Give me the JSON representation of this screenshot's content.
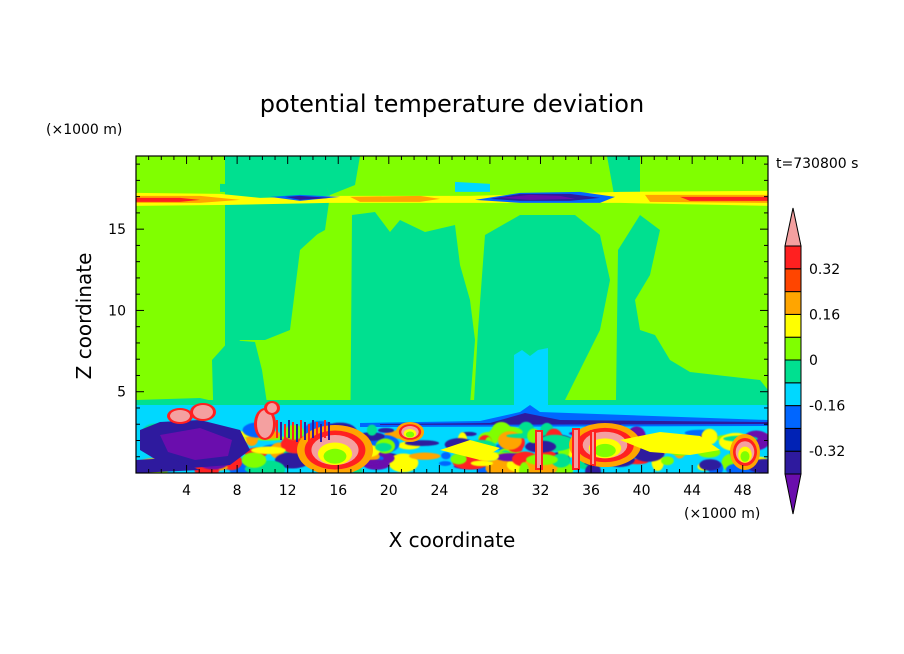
{
  "chart_data": {
    "type": "heatmap",
    "title": "potential temperature deviation",
    "xlabel": "X coordinate",
    "ylabel": "Z coordinate",
    "x_unit": "(×1000 m)",
    "y_unit": "(×1000 m)",
    "time_label": "t=730800 s",
    "xlim": [
      0,
      50
    ],
    "ylim": [
      0,
      19.5
    ],
    "x_ticks": [
      4,
      8,
      12,
      16,
      20,
      24,
      28,
      32,
      36,
      40,
      44,
      48
    ],
    "y_ticks": [
      5,
      10,
      15
    ],
    "colorbar": {
      "levels": [
        -0.4,
        -0.32,
        -0.24,
        -0.16,
        -0.08,
        0,
        0.08,
        0.16,
        0.24,
        0.32,
        0.4
      ],
      "labels": [
        "0.32",
        "0.16",
        "0",
        "-0.16",
        "-0.32"
      ],
      "label_values": [
        0.32,
        0.16,
        0,
        -0.16,
        -0.32
      ],
      "colors": [
        "#6a0dad",
        "#2e1a9e",
        "#0022b5",
        "#0066ff",
        "#00d8ff",
        "#00e090",
        "#80ff00",
        "#ffff00",
        "#ffa500",
        "#ff4500",
        "#ff2020",
        "#f4a0a0"
      ],
      "extend": "both"
    },
    "field_colors": {
      "background": "#80ff00",
      "light_negative": "#00e090",
      "cyan": "#00d8ff",
      "blue": "#0066ff",
      "dark_blue": "#2e1a9e",
      "purple": "#6a0dad",
      "yellow": "#ffff00",
      "orange": "#ffa500",
      "red": "#ff2020",
      "pink": "#f4a0a0"
    }
  }
}
